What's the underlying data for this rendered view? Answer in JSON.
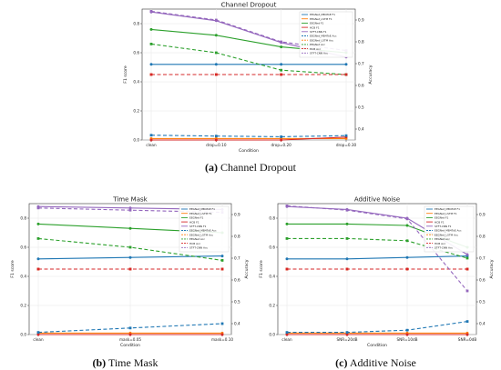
{
  "captions": [
    {
      "letter": "(a)",
      "text": "Channel Dropout"
    },
    {
      "letter": "(b)",
      "text": "Time Mask"
    },
    {
      "letter": "(c)",
      "text": "Additive Noise"
    }
  ],
  "legend_entries": [
    "EEGNet_MB4ToE F1",
    "EEGNet_LSTM F1",
    "EEGNet F1",
    "HCB F1",
    "STFT-CNN F1",
    "EEGNet_MB4ToE Acc",
    "EEGNet_LSTM Acc",
    "EEGNet Acc",
    "HCB Acc",
    "STFT-CNN Acc"
  ],
  "chart_data": [
    {
      "type": "line",
      "title": "Channel Dropout",
      "xlabel": "Condition",
      "ylabel": "F1 score",
      "y2label": "Accuracy",
      "categories": [
        "clean",
        "drop=0.10",
        "drop=0.20",
        "drop=0.30"
      ],
      "ylim": [
        0,
        0.9
      ],
      "y2lim": [
        0.35,
        0.95
      ],
      "yticks": [
        0.0,
        0.2,
        0.4,
        0.6,
        0.8
      ],
      "y2ticks": [
        0.4,
        0.5,
        0.6,
        0.7,
        0.8,
        0.9
      ],
      "grid": true,
      "legend": "top-right",
      "series": [
        {
          "name": "EEGNet_MB4ToE F1",
          "axis": "left",
          "color": "#1f77b4",
          "dash": false,
          "values": [
            0.52,
            0.52,
            0.52,
            0.52
          ]
        },
        {
          "name": "EEGNet_LSTM F1",
          "axis": "left",
          "color": "#ff7f0e",
          "dash": false,
          "values": [
            0.01,
            0.01,
            0.01,
            0.01
          ]
        },
        {
          "name": "EEGNet F1",
          "axis": "left",
          "color": "#2ca02c",
          "dash": false,
          "values": [
            0.76,
            0.72,
            0.64,
            0.6
          ]
        },
        {
          "name": "HCB F1",
          "axis": "left",
          "color": "#d62728",
          "dash": false,
          "values": [
            0.0,
            0.0,
            0.0,
            0.02
          ]
        },
        {
          "name": "STFT-CNN F1",
          "axis": "left",
          "color": "#9467bd",
          "dash": false,
          "values": [
            0.88,
            0.82,
            0.67,
            0.57
          ]
        },
        {
          "name": "EEGNet_MB4ToE Acc",
          "axis": "right",
          "color": "#1f77b4",
          "dash": true,
          "values": [
            0.372,
            0.368,
            0.365,
            0.37
          ]
        },
        {
          "name": "EEGNet_LSTM Acc",
          "axis": "right",
          "color": "#ff7f0e",
          "dash": true,
          "values": [
            0.65,
            0.65,
            0.65,
            0.65
          ]
        },
        {
          "name": "EEGNet Acc",
          "axis": "right",
          "color": "#2ca02c",
          "dash": true,
          "values": [
            0.79,
            0.75,
            0.67,
            0.65
          ]
        },
        {
          "name": "HCB Acc",
          "axis": "right",
          "color": "#d62728",
          "dash": true,
          "values": [
            0.65,
            0.65,
            0.65,
            0.65
          ]
        },
        {
          "name": "STFT-CNN Acc",
          "axis": "right",
          "color": "#9467bd",
          "dash": true,
          "values": [
            0.94,
            0.9,
            0.8,
            0.76
          ]
        }
      ]
    },
    {
      "type": "line",
      "title": "Time Mask",
      "xlabel": "Condition",
      "ylabel": "F1 score",
      "y2label": "Accuracy",
      "categories": [
        "clean",
        "mask=0.05",
        "mask=0.10"
      ],
      "ylim": [
        0,
        0.9
      ],
      "y2lim": [
        0.35,
        0.95
      ],
      "yticks": [
        0.0,
        0.2,
        0.4,
        0.6,
        0.8
      ],
      "y2ticks": [
        0.4,
        0.5,
        0.6,
        0.7,
        0.8,
        0.9
      ],
      "grid": true,
      "legend": "top-right",
      "series": [
        {
          "name": "EEGNet_MB4ToE F1",
          "axis": "left",
          "color": "#1f77b4",
          "dash": false,
          "values": [
            0.52,
            0.53,
            0.54
          ]
        },
        {
          "name": "EEGNet_LSTM F1",
          "axis": "left",
          "color": "#ff7f0e",
          "dash": false,
          "values": [
            0.01,
            0.01,
            0.01
          ]
        },
        {
          "name": "EEGNet F1",
          "axis": "left",
          "color": "#2ca02c",
          "dash": false,
          "values": [
            0.76,
            0.73,
            0.7
          ]
        },
        {
          "name": "HCB F1",
          "axis": "left",
          "color": "#d62728",
          "dash": false,
          "values": [
            0.0,
            0.0,
            0.0
          ]
        },
        {
          "name": "STFT-CNN F1",
          "axis": "left",
          "color": "#9467bd",
          "dash": false,
          "values": [
            0.88,
            0.87,
            0.86
          ]
        },
        {
          "name": "EEGNet_MB4ToE Acc",
          "axis": "right",
          "color": "#1f77b4",
          "dash": true,
          "values": [
            0.36,
            0.38,
            0.4
          ]
        },
        {
          "name": "EEGNet_LSTM Acc",
          "axis": "right",
          "color": "#ff7f0e",
          "dash": true,
          "values": [
            0.65,
            0.65,
            0.65
          ]
        },
        {
          "name": "EEGNet Acc",
          "axis": "right",
          "color": "#2ca02c",
          "dash": true,
          "values": [
            0.79,
            0.75,
            0.69
          ]
        },
        {
          "name": "HCB Acc",
          "axis": "right",
          "color": "#d62728",
          "dash": true,
          "values": [
            0.65,
            0.65,
            0.65
          ]
        },
        {
          "name": "STFT-CNN Acc",
          "axis": "right",
          "color": "#9467bd",
          "dash": true,
          "values": [
            0.93,
            0.92,
            0.91
          ]
        }
      ]
    },
    {
      "type": "line",
      "title": "Additive Noise",
      "xlabel": "Condition",
      "ylabel": "F1 score",
      "y2label": "Accuracy",
      "categories": [
        "clean",
        "SNR=20dB",
        "SNR=10dB",
        "SNR=0dB"
      ],
      "ylim": [
        0,
        0.9
      ],
      "y2lim": [
        0.35,
        0.95
      ],
      "yticks": [
        0.0,
        0.2,
        0.4,
        0.6,
        0.8
      ],
      "y2ticks": [
        0.4,
        0.5,
        0.6,
        0.7,
        0.8,
        0.9
      ],
      "grid": true,
      "legend": "top-right",
      "series": [
        {
          "name": "EEGNet_MB4ToE F1",
          "axis": "left",
          "color": "#1f77b4",
          "dash": false,
          "values": [
            0.52,
            0.52,
            0.53,
            0.54
          ]
        },
        {
          "name": "EEGNet_LSTM F1",
          "axis": "left",
          "color": "#ff7f0e",
          "dash": false,
          "values": [
            0.01,
            0.01,
            0.01,
            0.01
          ]
        },
        {
          "name": "EEGNet F1",
          "axis": "left",
          "color": "#2ca02c",
          "dash": false,
          "values": [
            0.76,
            0.76,
            0.75,
            0.6
          ]
        },
        {
          "name": "HCB F1",
          "axis": "left",
          "color": "#d62728",
          "dash": false,
          "values": [
            0.0,
            0.0,
            0.0,
            0.0
          ]
        },
        {
          "name": "STFT-CNN F1",
          "axis": "left",
          "color": "#9467bd",
          "dash": false,
          "values": [
            0.88,
            0.86,
            0.8,
            0.55
          ]
        },
        {
          "name": "EEGNet_MB4ToE Acc",
          "axis": "right",
          "color": "#1f77b4",
          "dash": true,
          "values": [
            0.36,
            0.36,
            0.37,
            0.41
          ]
        },
        {
          "name": "EEGNet_LSTM Acc",
          "axis": "right",
          "color": "#ff7f0e",
          "dash": true,
          "values": [
            0.65,
            0.65,
            0.65,
            0.65
          ]
        },
        {
          "name": "EEGNet Acc",
          "axis": "right",
          "color": "#2ca02c",
          "dash": true,
          "values": [
            0.79,
            0.79,
            0.78,
            0.7
          ]
        },
        {
          "name": "HCB Acc",
          "axis": "right",
          "color": "#d62728",
          "dash": true,
          "values": [
            0.65,
            0.65,
            0.65,
            0.65
          ]
        },
        {
          "name": "STFT-CNN Acc",
          "axis": "right",
          "color": "#9467bd",
          "dash": true,
          "values": [
            0.94,
            0.92,
            0.88,
            0.55
          ]
        }
      ]
    }
  ]
}
